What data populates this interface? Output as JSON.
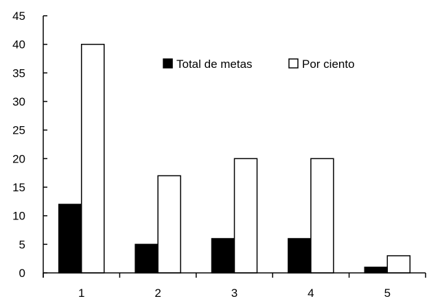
{
  "chart_data": {
    "type": "bar",
    "categories": [
      "1",
      "2",
      "3",
      "4",
      "5"
    ],
    "series": [
      {
        "name": "Total de metas",
        "values": [
          12,
          5,
          6,
          6,
          1
        ],
        "color": "#000000"
      },
      {
        "name": "Por ciento",
        "values": [
          40,
          17,
          20,
          20,
          3
        ],
        "color": "#ffffff"
      }
    ],
    "title": "",
    "xlabel": "",
    "ylabel": "",
    "ylim": [
      0,
      45
    ],
    "yticks": [
      0,
      5,
      10,
      15,
      20,
      25,
      30,
      35,
      40,
      45
    ],
    "grid": false,
    "legend_position": "top-right"
  }
}
